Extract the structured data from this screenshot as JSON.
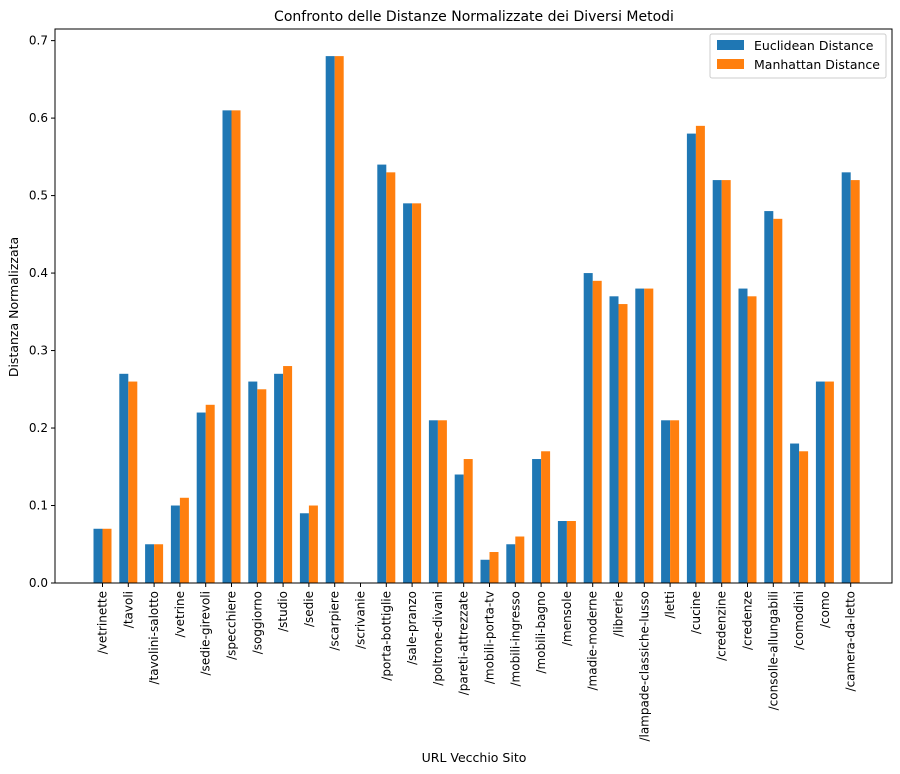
{
  "chart_data": {
    "type": "bar",
    "title": "Confronto delle Distanze Normalizzate dei Diversi Metodi",
    "xlabel": "URL Vecchio Sito",
    "ylabel": "Distanza Normalizzata",
    "ylim": [
      0,
      0.715
    ],
    "yticks": [
      "0.0",
      "0.1",
      "0.2",
      "0.3",
      "0.4",
      "0.5",
      "0.6",
      "0.7"
    ],
    "legend_position": "top-right",
    "categories": [
      "/vetrinette",
      "/tavoli",
      "/tavolini-salotto",
      "/vetrine",
      "/sedie-girevoli",
      "/specchiere",
      "/soggiorno",
      "/studio",
      "/sedie",
      "/scarpiere",
      "/scrivanie",
      "/porta-bottiglie",
      "/sale-pranzo",
      "/poltrone-divani",
      "/pareti-attrezzate",
      "/mobili-porta-tv",
      "/mobili-ingresso",
      "/mobili-bagno",
      "/mensole",
      "/madie-moderne",
      "/librerie",
      "/lampade-classiche-lusso",
      "/letti",
      "/cucine",
      "/credenzine",
      "/credenze",
      "/consolle-allungabili",
      "/comodini",
      "/como",
      "/camera-da-letto"
    ],
    "series": [
      {
        "name": "Euclidean Distance",
        "color": "#1f77b4",
        "values": [
          0.07,
          0.27,
          0.05,
          0.1,
          0.22,
          0.61,
          0.26,
          0.27,
          0.09,
          0.68,
          0.0,
          0.54,
          0.49,
          0.21,
          0.14,
          0.03,
          0.05,
          0.16,
          0.08,
          0.4,
          0.37,
          0.38,
          0.21,
          0.58,
          0.52,
          0.38,
          0.48,
          0.18,
          0.26,
          0.53
        ]
      },
      {
        "name": "Manhattan Distance",
        "color": "#ff7f0e",
        "values": [
          0.07,
          0.26,
          0.05,
          0.11,
          0.23,
          0.61,
          0.25,
          0.28,
          0.1,
          0.68,
          0.0,
          0.53,
          0.49,
          0.21,
          0.16,
          0.04,
          0.06,
          0.17,
          0.08,
          0.39,
          0.36,
          0.38,
          0.21,
          0.59,
          0.52,
          0.37,
          0.47,
          0.17,
          0.26,
          0.52
        ]
      }
    ]
  }
}
